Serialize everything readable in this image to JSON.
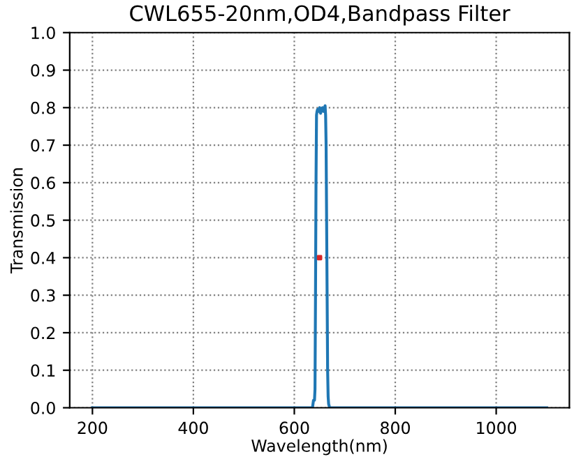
{
  "chart_data": {
    "type": "line",
    "title": "CWL655-20nm,OD4,Bandpass Filter",
    "xlabel": "Wavelength(nm)",
    "ylabel": "Transmission",
    "xlim": [
      155,
      1145
    ],
    "ylim": [
      0,
      1
    ],
    "xticks": [
      200,
      400,
      600,
      800,
      1000
    ],
    "yticks": [
      {
        "value": 0,
        "label": "0.0"
      },
      0.1,
      0.2,
      0.3,
      0.4,
      0.5,
      0.6,
      0.7,
      0.8,
      0.9,
      {
        "value": 1,
        "label": "1.0"
      }
    ],
    "grid": true,
    "series": [
      {
        "color": "#1f77b4",
        "x": [
          200,
          600,
          636,
          637,
          638,
          640,
          641,
          642,
          643,
          644,
          645,
          646,
          648,
          650,
          652,
          654,
          656,
          658,
          660,
          661,
          662,
          663,
          664,
          665,
          666,
          667,
          668,
          670,
          700,
          1100
        ],
        "values": [
          0,
          0,
          0,
          0.01,
          0.02,
          0.02,
          0.05,
          0.3,
          0.6,
          0.78,
          0.79,
          0.795,
          0.79,
          0.8,
          0.785,
          0.795,
          0.8,
          0.79,
          0.8,
          0.805,
          0.78,
          0.7,
          0.5,
          0.3,
          0.1,
          0.03,
          0.01,
          0,
          0,
          0
        ]
      },
      {
        "type": "scatter",
        "color": "#d62728",
        "x": [
          650
        ],
        "values": [
          0.4
        ]
      }
    ]
  }
}
